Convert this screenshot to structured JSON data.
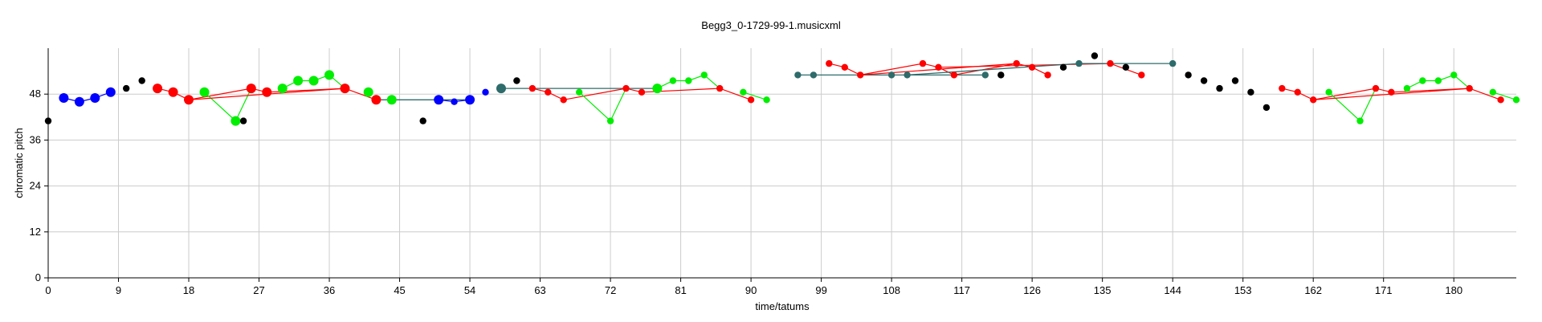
{
  "chart_data": {
    "type": "scatter",
    "title": "Begg3_0-1729-99-1.musicxml",
    "xlabel": "time/tatums",
    "ylabel": "chromatic pitch",
    "xlim": [
      0,
      188
    ],
    "ylim": [
      0,
      60
    ],
    "xticks": [
      0,
      9,
      18,
      27,
      36,
      45,
      54,
      63,
      72,
      81,
      90,
      99,
      108,
      117,
      126,
      135,
      144,
      153,
      162,
      171,
      180
    ],
    "yticks": [
      0,
      12,
      24,
      36,
      48
    ],
    "grid": true,
    "colors": {
      "black": "#000000",
      "blue": "#0000ff",
      "red": "#ff0000",
      "green": "#00ee00",
      "teal": "#2e6b6b",
      "gray_line": "#808080"
    },
    "points": [
      {
        "x": 0,
        "y": 41,
        "color": "black",
        "size": "small"
      },
      {
        "x": 2,
        "y": 47,
        "color": "blue",
        "size": "large"
      },
      {
        "x": 4,
        "y": 46,
        "color": "blue",
        "size": "large"
      },
      {
        "x": 6,
        "y": 47,
        "color": "blue",
        "size": "large"
      },
      {
        "x": 8,
        "y": 48.5,
        "color": "blue",
        "size": "large"
      },
      {
        "x": 10,
        "y": 49.5,
        "color": "black",
        "size": "small"
      },
      {
        "x": 12,
        "y": 51.5,
        "color": "black",
        "size": "small"
      },
      {
        "x": 14,
        "y": 49.5,
        "color": "red",
        "size": "large"
      },
      {
        "x": 16,
        "y": 48.5,
        "color": "red",
        "size": "large"
      },
      {
        "x": 18,
        "y": 46.5,
        "color": "red",
        "size": "large"
      },
      {
        "x": 20,
        "y": 48.5,
        "color": "green",
        "size": "large"
      },
      {
        "x": 24,
        "y": 41,
        "color": "green",
        "size": "large"
      },
      {
        "x": 25,
        "y": 41,
        "color": "black",
        "size": "small"
      },
      {
        "x": 26,
        "y": 49.5,
        "color": "red",
        "size": "large"
      },
      {
        "x": 28,
        "y": 48.5,
        "color": "red",
        "size": "large"
      },
      {
        "x": 30,
        "y": 49.5,
        "color": "green",
        "size": "large"
      },
      {
        "x": 32,
        "y": 51.5,
        "color": "green",
        "size": "large"
      },
      {
        "x": 34,
        "y": 51.5,
        "color": "green",
        "size": "large"
      },
      {
        "x": 36,
        "y": 53,
        "color": "green",
        "size": "large"
      },
      {
        "x": 38,
        "y": 49.5,
        "color": "red",
        "size": "large"
      },
      {
        "x": 41,
        "y": 48.5,
        "color": "green",
        "size": "large"
      },
      {
        "x": 42,
        "y": 46.5,
        "color": "red",
        "size": "large"
      },
      {
        "x": 44,
        "y": 46.5,
        "color": "green",
        "size": "large"
      },
      {
        "x": 48,
        "y": 41,
        "color": "black",
        "size": "small"
      },
      {
        "x": 50,
        "y": 46.5,
        "color": "blue",
        "size": "large"
      },
      {
        "x": 52,
        "y": 46,
        "color": "blue",
        "size": "small"
      },
      {
        "x": 54,
        "y": 46.5,
        "color": "blue",
        "size": "large"
      },
      {
        "x": 56,
        "y": 48.5,
        "color": "blue",
        "size": "small"
      },
      {
        "x": 58,
        "y": 49.5,
        "color": "teal",
        "size": "large"
      },
      {
        "x": 60,
        "y": 51.5,
        "color": "black",
        "size": "small"
      },
      {
        "x": 62,
        "y": 49.5,
        "color": "red",
        "size": "small"
      },
      {
        "x": 64,
        "y": 48.5,
        "color": "red",
        "size": "small"
      },
      {
        "x": 66,
        "y": 46.5,
        "color": "red",
        "size": "small"
      },
      {
        "x": 68,
        "y": 48.5,
        "color": "green",
        "size": "small"
      },
      {
        "x": 72,
        "y": 41,
        "color": "green",
        "size": "small"
      },
      {
        "x": 74,
        "y": 49.5,
        "color": "red",
        "size": "small"
      },
      {
        "x": 76,
        "y": 48.5,
        "color": "red",
        "size": "small"
      },
      {
        "x": 78,
        "y": 49.5,
        "color": "green",
        "size": "large"
      },
      {
        "x": 80,
        "y": 51.5,
        "color": "green",
        "size": "small"
      },
      {
        "x": 82,
        "y": 51.5,
        "color": "green",
        "size": "small"
      },
      {
        "x": 84,
        "y": 53,
        "color": "green",
        "size": "small"
      },
      {
        "x": 86,
        "y": 49.5,
        "color": "red",
        "size": "small"
      },
      {
        "x": 89,
        "y": 48.5,
        "color": "green",
        "size": "small"
      },
      {
        "x": 90,
        "y": 46.5,
        "color": "red",
        "size": "small"
      },
      {
        "x": 92,
        "y": 46.5,
        "color": "green",
        "size": "small"
      },
      {
        "x": 96,
        "y": 53,
        "color": "teal",
        "size": "small"
      },
      {
        "x": 98,
        "y": 53,
        "color": "teal",
        "size": "small"
      },
      {
        "x": 100,
        "y": 56,
        "color": "red",
        "size": "small"
      },
      {
        "x": 102,
        "y": 55,
        "color": "red",
        "size": "small"
      },
      {
        "x": 104,
        "y": 53,
        "color": "red",
        "size": "small"
      },
      {
        "x": 108,
        "y": 53,
        "color": "teal",
        "size": "small"
      },
      {
        "x": 110,
        "y": 53,
        "color": "teal",
        "size": "small"
      },
      {
        "x": 112,
        "y": 56,
        "color": "red",
        "size": "small"
      },
      {
        "x": 114,
        "y": 55,
        "color": "red",
        "size": "small"
      },
      {
        "x": 116,
        "y": 53,
        "color": "red",
        "size": "small"
      },
      {
        "x": 120,
        "y": 53,
        "color": "teal",
        "size": "small"
      },
      {
        "x": 122,
        "y": 53,
        "color": "black",
        "size": "small"
      },
      {
        "x": 124,
        "y": 56,
        "color": "red",
        "size": "small"
      },
      {
        "x": 126,
        "y": 55,
        "color": "red",
        "size": "small"
      },
      {
        "x": 128,
        "y": 53,
        "color": "red",
        "size": "small"
      },
      {
        "x": 130,
        "y": 55,
        "color": "black",
        "size": "small"
      },
      {
        "x": 132,
        "y": 56,
        "color": "teal",
        "size": "small"
      },
      {
        "x": 134,
        "y": 58,
        "color": "black",
        "size": "small"
      },
      {
        "x": 136,
        "y": 56,
        "color": "red",
        "size": "small"
      },
      {
        "x": 138,
        "y": 55,
        "color": "black",
        "size": "small"
      },
      {
        "x": 140,
        "y": 53,
        "color": "red",
        "size": "small"
      },
      {
        "x": 144,
        "y": 56,
        "color": "teal",
        "size": "small"
      },
      {
        "x": 146,
        "y": 53,
        "color": "black",
        "size": "small"
      },
      {
        "x": 148,
        "y": 51.5,
        "color": "black",
        "size": "small"
      },
      {
        "x": 150,
        "y": 49.5,
        "color": "black",
        "size": "small"
      },
      {
        "x": 152,
        "y": 51.5,
        "color": "black",
        "size": "small"
      },
      {
        "x": 154,
        "y": 48.5,
        "color": "black",
        "size": "small"
      },
      {
        "x": 156,
        "y": 44.5,
        "color": "black",
        "size": "small"
      },
      {
        "x": 158,
        "y": 49.5,
        "color": "red",
        "size": "small"
      },
      {
        "x": 160,
        "y": 48.5,
        "color": "red",
        "size": "small"
      },
      {
        "x": 162,
        "y": 46.5,
        "color": "red",
        "size": "small"
      },
      {
        "x": 164,
        "y": 48.5,
        "color": "green",
        "size": "small"
      },
      {
        "x": 168,
        "y": 41,
        "color": "green",
        "size": "small"
      },
      {
        "x": 170,
        "y": 49.5,
        "color": "red",
        "size": "small"
      },
      {
        "x": 172,
        "y": 48.5,
        "color": "red",
        "size": "small"
      },
      {
        "x": 174,
        "y": 49.5,
        "color": "green",
        "size": "small"
      },
      {
        "x": 176,
        "y": 51.5,
        "color": "green",
        "size": "small"
      },
      {
        "x": 178,
        "y": 51.5,
        "color": "green",
        "size": "small"
      },
      {
        "x": 180,
        "y": 53,
        "color": "green",
        "size": "small"
      },
      {
        "x": 182,
        "y": 49.5,
        "color": "red",
        "size": "small"
      },
      {
        "x": 185,
        "y": 48.5,
        "color": "green",
        "size": "small"
      },
      {
        "x": 186,
        "y": 46.5,
        "color": "red",
        "size": "small"
      },
      {
        "x": 188,
        "y": 46.5,
        "color": "green",
        "size": "small"
      }
    ],
    "segments": [
      {
        "color": "blue",
        "points": [
          [
            2,
            47
          ],
          [
            4,
            46
          ],
          [
            6,
            47
          ],
          [
            8,
            48.5
          ]
        ]
      },
      {
        "color": "red",
        "points": [
          [
            14,
            49.5
          ],
          [
            16,
            48.5
          ],
          [
            18,
            46.5
          ],
          [
            26,
            49.5
          ],
          [
            28,
            48.5
          ],
          [
            38,
            49.5
          ],
          [
            42,
            46.5
          ]
        ]
      },
      {
        "color": "green",
        "points": [
          [
            20,
            48.5
          ],
          [
            24,
            41
          ],
          [
            26,
            49.5
          ]
        ]
      },
      {
        "color": "green",
        "points": [
          [
            30,
            49.5
          ],
          [
            32,
            51.5
          ],
          [
            34,
            51.5
          ],
          [
            36,
            53
          ],
          [
            38,
            49.5
          ]
        ]
      },
      {
        "color": "red",
        "points": [
          [
            18,
            46.5
          ],
          [
            38,
            49.5
          ]
        ]
      },
      {
        "color": "teal",
        "points": [
          [
            42,
            46.5
          ],
          [
            54,
            46.5
          ]
        ]
      },
      {
        "color": "blue",
        "points": [
          [
            50,
            46.5
          ],
          [
            52,
            46
          ],
          [
            54,
            46.5
          ]
        ]
      },
      {
        "color": "teal",
        "points": [
          [
            58,
            49.5
          ],
          [
            78,
            49.5
          ]
        ]
      },
      {
        "color": "red",
        "points": [
          [
            62,
            49.5
          ],
          [
            64,
            48.5
          ],
          [
            66,
            46.5
          ],
          [
            74,
            49.5
          ],
          [
            76,
            48.5
          ],
          [
            86,
            49.5
          ],
          [
            90,
            46.5
          ]
        ]
      },
      {
        "color": "green",
        "points": [
          [
            68,
            48.5
          ],
          [
            72,
            41
          ],
          [
            74,
            49.5
          ]
        ]
      },
      {
        "color": "green",
        "points": [
          [
            78,
            49.5
          ],
          [
            80,
            51.5
          ],
          [
            82,
            51.5
          ],
          [
            84,
            53
          ],
          [
            86,
            49.5
          ]
        ]
      },
      {
        "color": "green",
        "points": [
          [
            89,
            48.5
          ],
          [
            92,
            46.5
          ]
        ]
      },
      {
        "color": "teal",
        "points": [
          [
            96,
            53
          ],
          [
            98,
            53
          ],
          [
            120,
            53
          ]
        ]
      },
      {
        "color": "red",
        "points": [
          [
            100,
            56
          ],
          [
            102,
            55
          ],
          [
            104,
            53
          ],
          [
            112,
            56
          ],
          [
            114,
            55
          ],
          [
            116,
            53
          ],
          [
            124,
            56
          ],
          [
            126,
            55
          ],
          [
            128,
            53
          ]
        ]
      },
      {
        "color": "red",
        "points": [
          [
            104,
            53
          ],
          [
            124,
            56
          ]
        ]
      },
      {
        "color": "red",
        "points": [
          [
            114,
            55
          ],
          [
            136,
            56
          ],
          [
            140,
            53
          ]
        ]
      },
      {
        "color": "teal",
        "points": [
          [
            110,
            53
          ],
          [
            132,
            56
          ],
          [
            144,
            56
          ]
        ]
      },
      {
        "color": "red",
        "points": [
          [
            158,
            49.5
          ],
          [
            160,
            48.5
          ],
          [
            162,
            46.5
          ],
          [
            170,
            49.5
          ],
          [
            172,
            48.5
          ],
          [
            182,
            49.5
          ],
          [
            186,
            46.5
          ]
        ]
      },
      {
        "color": "green",
        "points": [
          [
            164,
            48.5
          ],
          [
            168,
            41
          ],
          [
            170,
            49.5
          ]
        ]
      },
      {
        "color": "green",
        "points": [
          [
            174,
            49.5
          ],
          [
            176,
            51.5
          ],
          [
            178,
            51.5
          ],
          [
            180,
            53
          ],
          [
            182,
            49.5
          ]
        ]
      },
      {
        "color": "green",
        "points": [
          [
            185,
            48.5
          ],
          [
            188,
            46.5
          ]
        ]
      },
      {
        "color": "red",
        "points": [
          [
            162,
            46.5
          ],
          [
            182,
            49.5
          ]
        ]
      }
    ]
  }
}
